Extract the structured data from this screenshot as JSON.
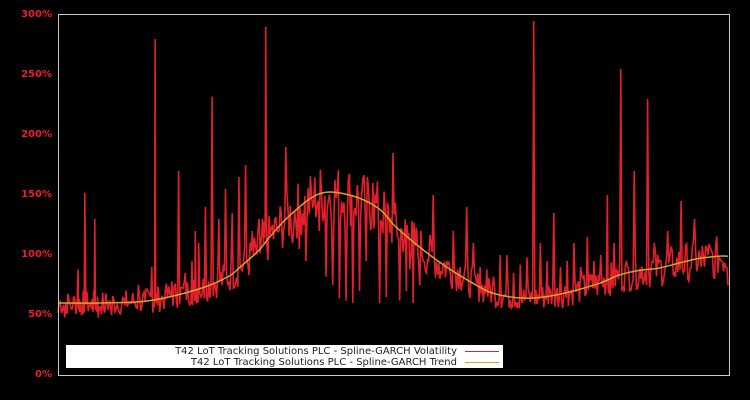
{
  "chart_data": {
    "type": "line",
    "title": "",
    "xlabel": "",
    "ylabel": "",
    "ylim": [
      0,
      300
    ],
    "y_ticks": [
      "0%",
      "50%",
      "100%",
      "150%",
      "200%",
      "250%",
      "300%"
    ],
    "grid": false,
    "legend_position": "lower-left",
    "background": "#000000",
    "series": [
      {
        "name": "T42 LoT Tracking Solutions PLC - Spline-GARCH Volatility",
        "color": "#e0202a",
        "x_fraction": [
          0.0,
          0.01,
          0.02,
          0.03,
          0.035,
          0.04,
          0.05,
          0.055,
          0.06,
          0.07,
          0.08,
          0.09,
          0.1,
          0.11,
          0.12,
          0.13,
          0.14,
          0.145,
          0.15,
          0.16,
          0.17,
          0.18,
          0.19,
          0.2,
          0.205,
          0.21,
          0.22,
          0.23,
          0.24,
          0.25,
          0.26,
          0.27,
          0.28,
          0.29,
          0.3,
          0.305,
          0.31,
          0.32,
          0.33,
          0.34,
          0.35,
          0.36,
          0.37,
          0.38,
          0.39,
          0.4,
          0.41,
          0.42,
          0.43,
          0.44,
          0.45,
          0.46,
          0.47,
          0.48,
          0.49,
          0.5,
          0.51,
          0.52,
          0.525,
          0.53,
          0.54,
          0.55,
          0.56,
          0.57,
          0.58,
          0.59,
          0.6,
          0.61,
          0.62,
          0.63,
          0.64,
          0.65,
          0.66,
          0.67,
          0.68,
          0.69,
          0.7,
          0.71,
          0.72,
          0.73,
          0.74,
          0.75,
          0.76,
          0.77,
          0.78,
          0.79,
          0.8,
          0.81,
          0.82,
          0.825,
          0.83,
          0.84,
          0.85,
          0.86,
          0.87,
          0.88,
          0.89,
          0.9,
          0.91,
          0.92,
          0.93,
          0.94,
          0.95,
          0.96,
          0.97,
          0.98,
          0.99,
          1.0
        ],
        "values": [
          52,
          48,
          55,
          88,
          50,
          152,
          55,
          130,
          48,
          52,
          50,
          55,
          58,
          60,
          75,
          62,
          90,
          280,
          72,
          70,
          78,
          170,
          85,
          95,
          120,
          110,
          140,
          232,
          130,
          155,
          135,
          165,
          175,
          120,
          130,
          130,
          290,
          125,
          120,
          190,
          110,
          105,
          95,
          140,
          120,
          82,
          75,
          64,
          62,
          60,
          70,
          95,
          160,
          60,
          65,
          185,
          62,
          70,
          88,
          60,
          75,
          85,
          150,
          80,
          95,
          120,
          90,
          140,
          110,
          90,
          88,
          82,
          100,
          100,
          85,
          92,
          98,
          295,
          110,
          95,
          135,
          90,
          95,
          110,
          90,
          115,
          95,
          100,
          150,
          80,
          110,
          255,
          90,
          170,
          80,
          230,
          110,
          95,
          120,
          85,
          145,
          80,
          130,
          90,
          100,
          80,
          95,
          75,
          100,
          65,
          103
        ]
      },
      {
        "name": "T42 LoT Tracking Solutions PLC - Spline-GARCH Trend",
        "color": "#d4a52a",
        "x_fraction": [
          0.0,
          0.063,
          0.137,
          0.212,
          0.254,
          0.272,
          0.3,
          0.316,
          0.346,
          0.39,
          0.435,
          0.478,
          0.507,
          0.567,
          0.627,
          0.657,
          0.701,
          0.746,
          0.806,
          0.836,
          0.866,
          0.896,
          0.925,
          0.955,
          0.985,
          1.0
        ],
        "values": [
          60,
          60,
          62,
          72,
          82,
          90,
          104,
          115,
          133,
          151,
          150,
          139,
          122,
          95,
          74,
          67,
          64,
          67,
          76,
          83,
          87,
          89,
          93,
          97,
          99,
          99
        ]
      }
    ]
  },
  "legend": {
    "items": [
      {
        "label": "T42 LoT Tracking Solutions PLC - Spline-GARCH Volatility",
        "color": "#e0202a"
      },
      {
        "label": "T42 LoT Tracking Solutions PLC - Spline-GARCH Trend",
        "color": "#d4a52a"
      }
    ]
  }
}
